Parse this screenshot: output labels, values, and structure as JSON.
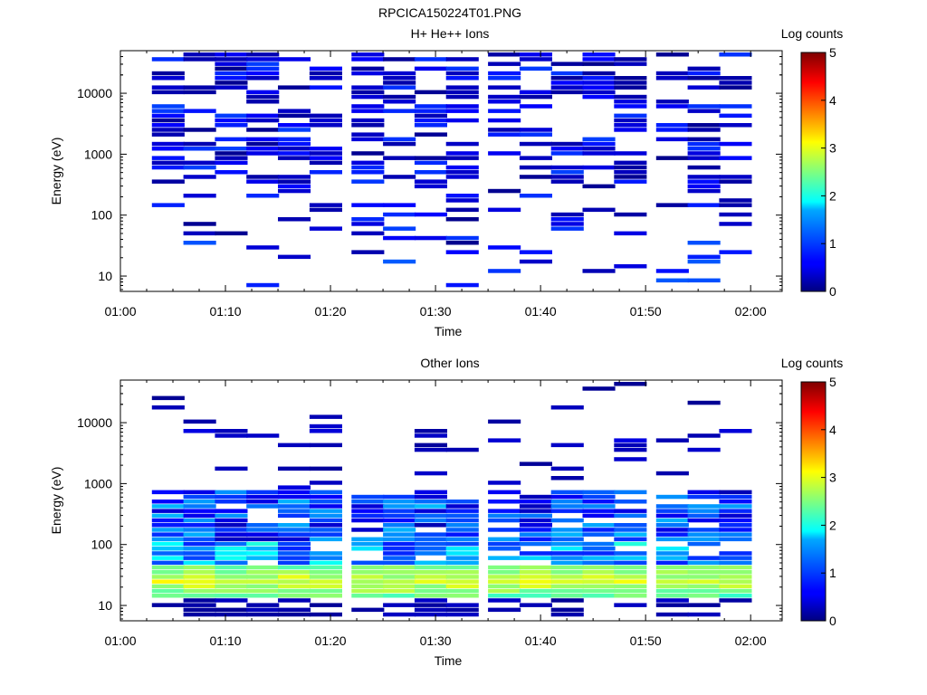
{
  "figure": {
    "title": "RPCICA150224T01.PNG"
  },
  "colorbar": {
    "label": "Log counts",
    "range": [
      0,
      5
    ],
    "ticks": [
      "0",
      "1",
      "2",
      "3",
      "4",
      "5"
    ],
    "colormap": "jet"
  },
  "chart_data": [
    {
      "type": "heatmap",
      "title": "H+ He++ Ions",
      "xlabel": "Time",
      "ylabel": "Energy (eV)",
      "x_ticks": [
        "01:00",
        "01:10",
        "01:20",
        "01:30",
        "01:40",
        "01:50",
        "02:00"
      ],
      "xlim": [
        "01:00",
        "02:03"
      ],
      "y_ticks": [
        "10",
        "100",
        "1000",
        "10000"
      ],
      "ylim": [
        5.6,
        50000
      ],
      "y_scale": "log",
      "time_bin_starts": [
        "01:03",
        "01:06",
        "01:09",
        "01:12",
        "01:15",
        "01:18",
        "01:22",
        "01:25",
        "01:28",
        "01:31",
        "01:35",
        "01:38",
        "01:41",
        "01:44",
        "01:47",
        "01:51",
        "01:54",
        "01:57"
      ],
      "bin_minutes": 3.2,
      "profile": "sparse"
    },
    {
      "type": "heatmap",
      "title": "Other Ions",
      "xlabel": "Time",
      "ylabel": "Energy (eV)",
      "x_ticks": [
        "01:00",
        "01:10",
        "01:20",
        "01:30",
        "01:40",
        "01:50",
        "02:00"
      ],
      "xlim": [
        "01:00",
        "02:03"
      ],
      "y_ticks": [
        "10",
        "100",
        "1000",
        "10000"
      ],
      "ylim": [
        5.6,
        50000
      ],
      "y_scale": "log",
      "time_bin_starts": [
        "01:03",
        "01:06",
        "01:09",
        "01:12",
        "01:15",
        "01:18",
        "01:22",
        "01:25",
        "01:28",
        "01:31",
        "01:35",
        "01:38",
        "01:41",
        "01:44",
        "01:47",
        "01:51",
        "01:54",
        "01:57"
      ],
      "bin_minutes": 3.2,
      "profile": "peak-20-40eV",
      "peak_energy_eV": 25,
      "peak_log_counts": 3.2
    }
  ]
}
